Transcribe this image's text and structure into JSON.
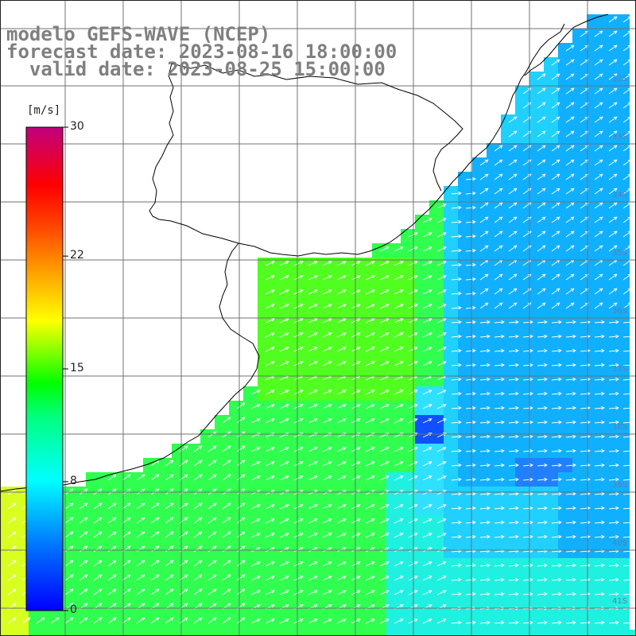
{
  "title": {
    "line1": "modelo GEFS-WAVE (NCEP)",
    "line2": "forecast date: 2023-08-16 18:00:00",
    "line3": "  valid date: 2023-08-25 15:00:00"
  },
  "colorbar": {
    "units": "[m/s]",
    "min": 0,
    "max": 30,
    "tick_labels": [
      "30",
      "22",
      "15",
      "8",
      "0"
    ],
    "tick_values": [
      30,
      22,
      15,
      8,
      0
    ],
    "colors": [
      "#0000ff",
      "#00a0ff",
      "#00ffff",
      "#00ff60",
      "#00ff00",
      "#80ff00",
      "#ffff00",
      "#ffa000",
      "#ff5000",
      "#ff0000",
      "#ff0060",
      "#c0007f"
    ]
  },
  "map": {
    "latitude_labels": [
      "32S",
      "33S",
      "34S",
      "35S",
      "36S",
      "37S",
      "38S",
      "39S",
      "40S",
      "41S"
    ],
    "land_color": "#ffffff",
    "coast_color": "#000000",
    "grid_color": "#707070",
    "arrow_color": "#ffffff",
    "wind_field_description": "wind speed field with arrows pointing mostly eastward/northeastward"
  },
  "colors": {
    "title_gray": "#7f7f7f"
  }
}
